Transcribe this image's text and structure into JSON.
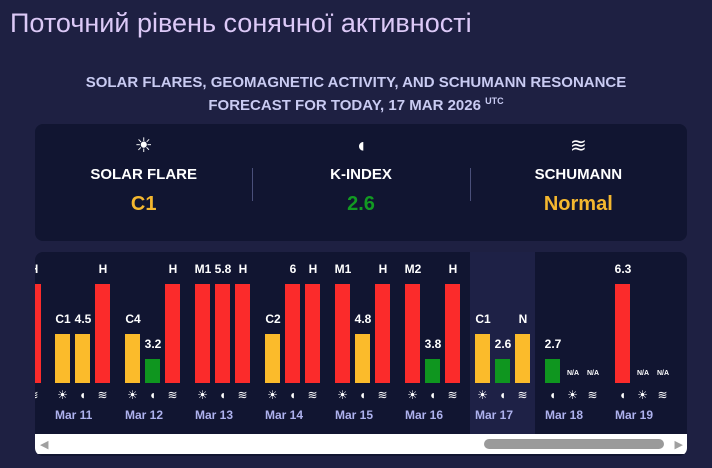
{
  "title": "Поточний рівень сонячної активності",
  "subtitle_line1": "SOLAR FLARES, GEOMAGNETIC ACTIVITY, AND SCHUMANN RESONANCE",
  "subtitle_line2": "FORECAST FOR TODAY, 17 MAR 2026",
  "subtitle_tz": "UTC",
  "colors": {
    "high": "#fb2b2b",
    "medium": "#fbbb2b",
    "low": "#0f961f"
  },
  "summary": [
    {
      "icon": "sun-icon",
      "glyph": "☀",
      "label": "SOLAR FLARE",
      "value": "C1",
      "color": "#f4b72f"
    },
    {
      "icon": "magnet-icon",
      "glyph": "◖",
      "label": "K-INDEX",
      "value": "2.6",
      "color": "#129a22"
    },
    {
      "icon": "waves-icon",
      "glyph": "≋",
      "label": "SCHUMANN",
      "value": "Normal",
      "color": "#f4b72f"
    }
  ],
  "days": [
    {
      "date": "",
      "bars": [
        {
          "type": "schumann",
          "value": "H",
          "level": "high"
        }
      ]
    },
    {
      "date": "Mar 11",
      "bars": [
        {
          "type": "flare",
          "value": "C1",
          "level": "medium"
        },
        {
          "type": "kindex",
          "value": "4.5",
          "level": "medium"
        },
        {
          "type": "schumann",
          "value": "H",
          "level": "high"
        }
      ]
    },
    {
      "date": "Mar 12",
      "bars": [
        {
          "type": "flare",
          "value": "C4",
          "level": "medium"
        },
        {
          "type": "kindex",
          "value": "3.2",
          "level": "low"
        },
        {
          "type": "schumann",
          "value": "H",
          "level": "high"
        }
      ]
    },
    {
      "date": "Mar 13",
      "bars": [
        {
          "type": "flare",
          "value": "M1",
          "level": "high"
        },
        {
          "type": "kindex",
          "value": "5.8",
          "level": "high"
        },
        {
          "type": "schumann",
          "value": "H",
          "level": "high"
        }
      ]
    },
    {
      "date": "Mar 14",
      "bars": [
        {
          "type": "flare",
          "value": "C2",
          "level": "medium"
        },
        {
          "type": "kindex",
          "value": "6",
          "level": "high"
        },
        {
          "type": "schumann",
          "value": "H",
          "level": "high"
        }
      ]
    },
    {
      "date": "Mar 15",
      "bars": [
        {
          "type": "flare",
          "value": "M1",
          "level": "high"
        },
        {
          "type": "kindex",
          "value": "4.8",
          "level": "medium"
        },
        {
          "type": "schumann",
          "value": "H",
          "level": "high"
        }
      ]
    },
    {
      "date": "Mar 16",
      "bars": [
        {
          "type": "flare",
          "value": "M2",
          "level": "high"
        },
        {
          "type": "kindex",
          "value": "3.8",
          "level": "low"
        },
        {
          "type": "schumann",
          "value": "H",
          "level": "high"
        }
      ]
    },
    {
      "date": "Mar 17",
      "today": true,
      "bars": [
        {
          "type": "flare",
          "value": "C1",
          "level": "medium"
        },
        {
          "type": "kindex",
          "value": "2.6",
          "level": "low"
        },
        {
          "type": "schumann",
          "value": "N",
          "level": "medium"
        }
      ]
    },
    {
      "date": "Mar 18",
      "bars": [
        {
          "type": "kindex",
          "value": "2.7",
          "level": "low"
        },
        {
          "type": "flare",
          "value": "N/A",
          "level": "none"
        },
        {
          "type": "schumann",
          "value": "N/A",
          "level": "none"
        }
      ]
    },
    {
      "date": "Mar 19",
      "bars": [
        {
          "type": "kindex",
          "value": "6.3",
          "level": "high"
        },
        {
          "type": "flare",
          "value": "N/A",
          "level": "none"
        },
        {
          "type": "schumann",
          "value": "N/A",
          "level": "none"
        }
      ]
    }
  ]
}
